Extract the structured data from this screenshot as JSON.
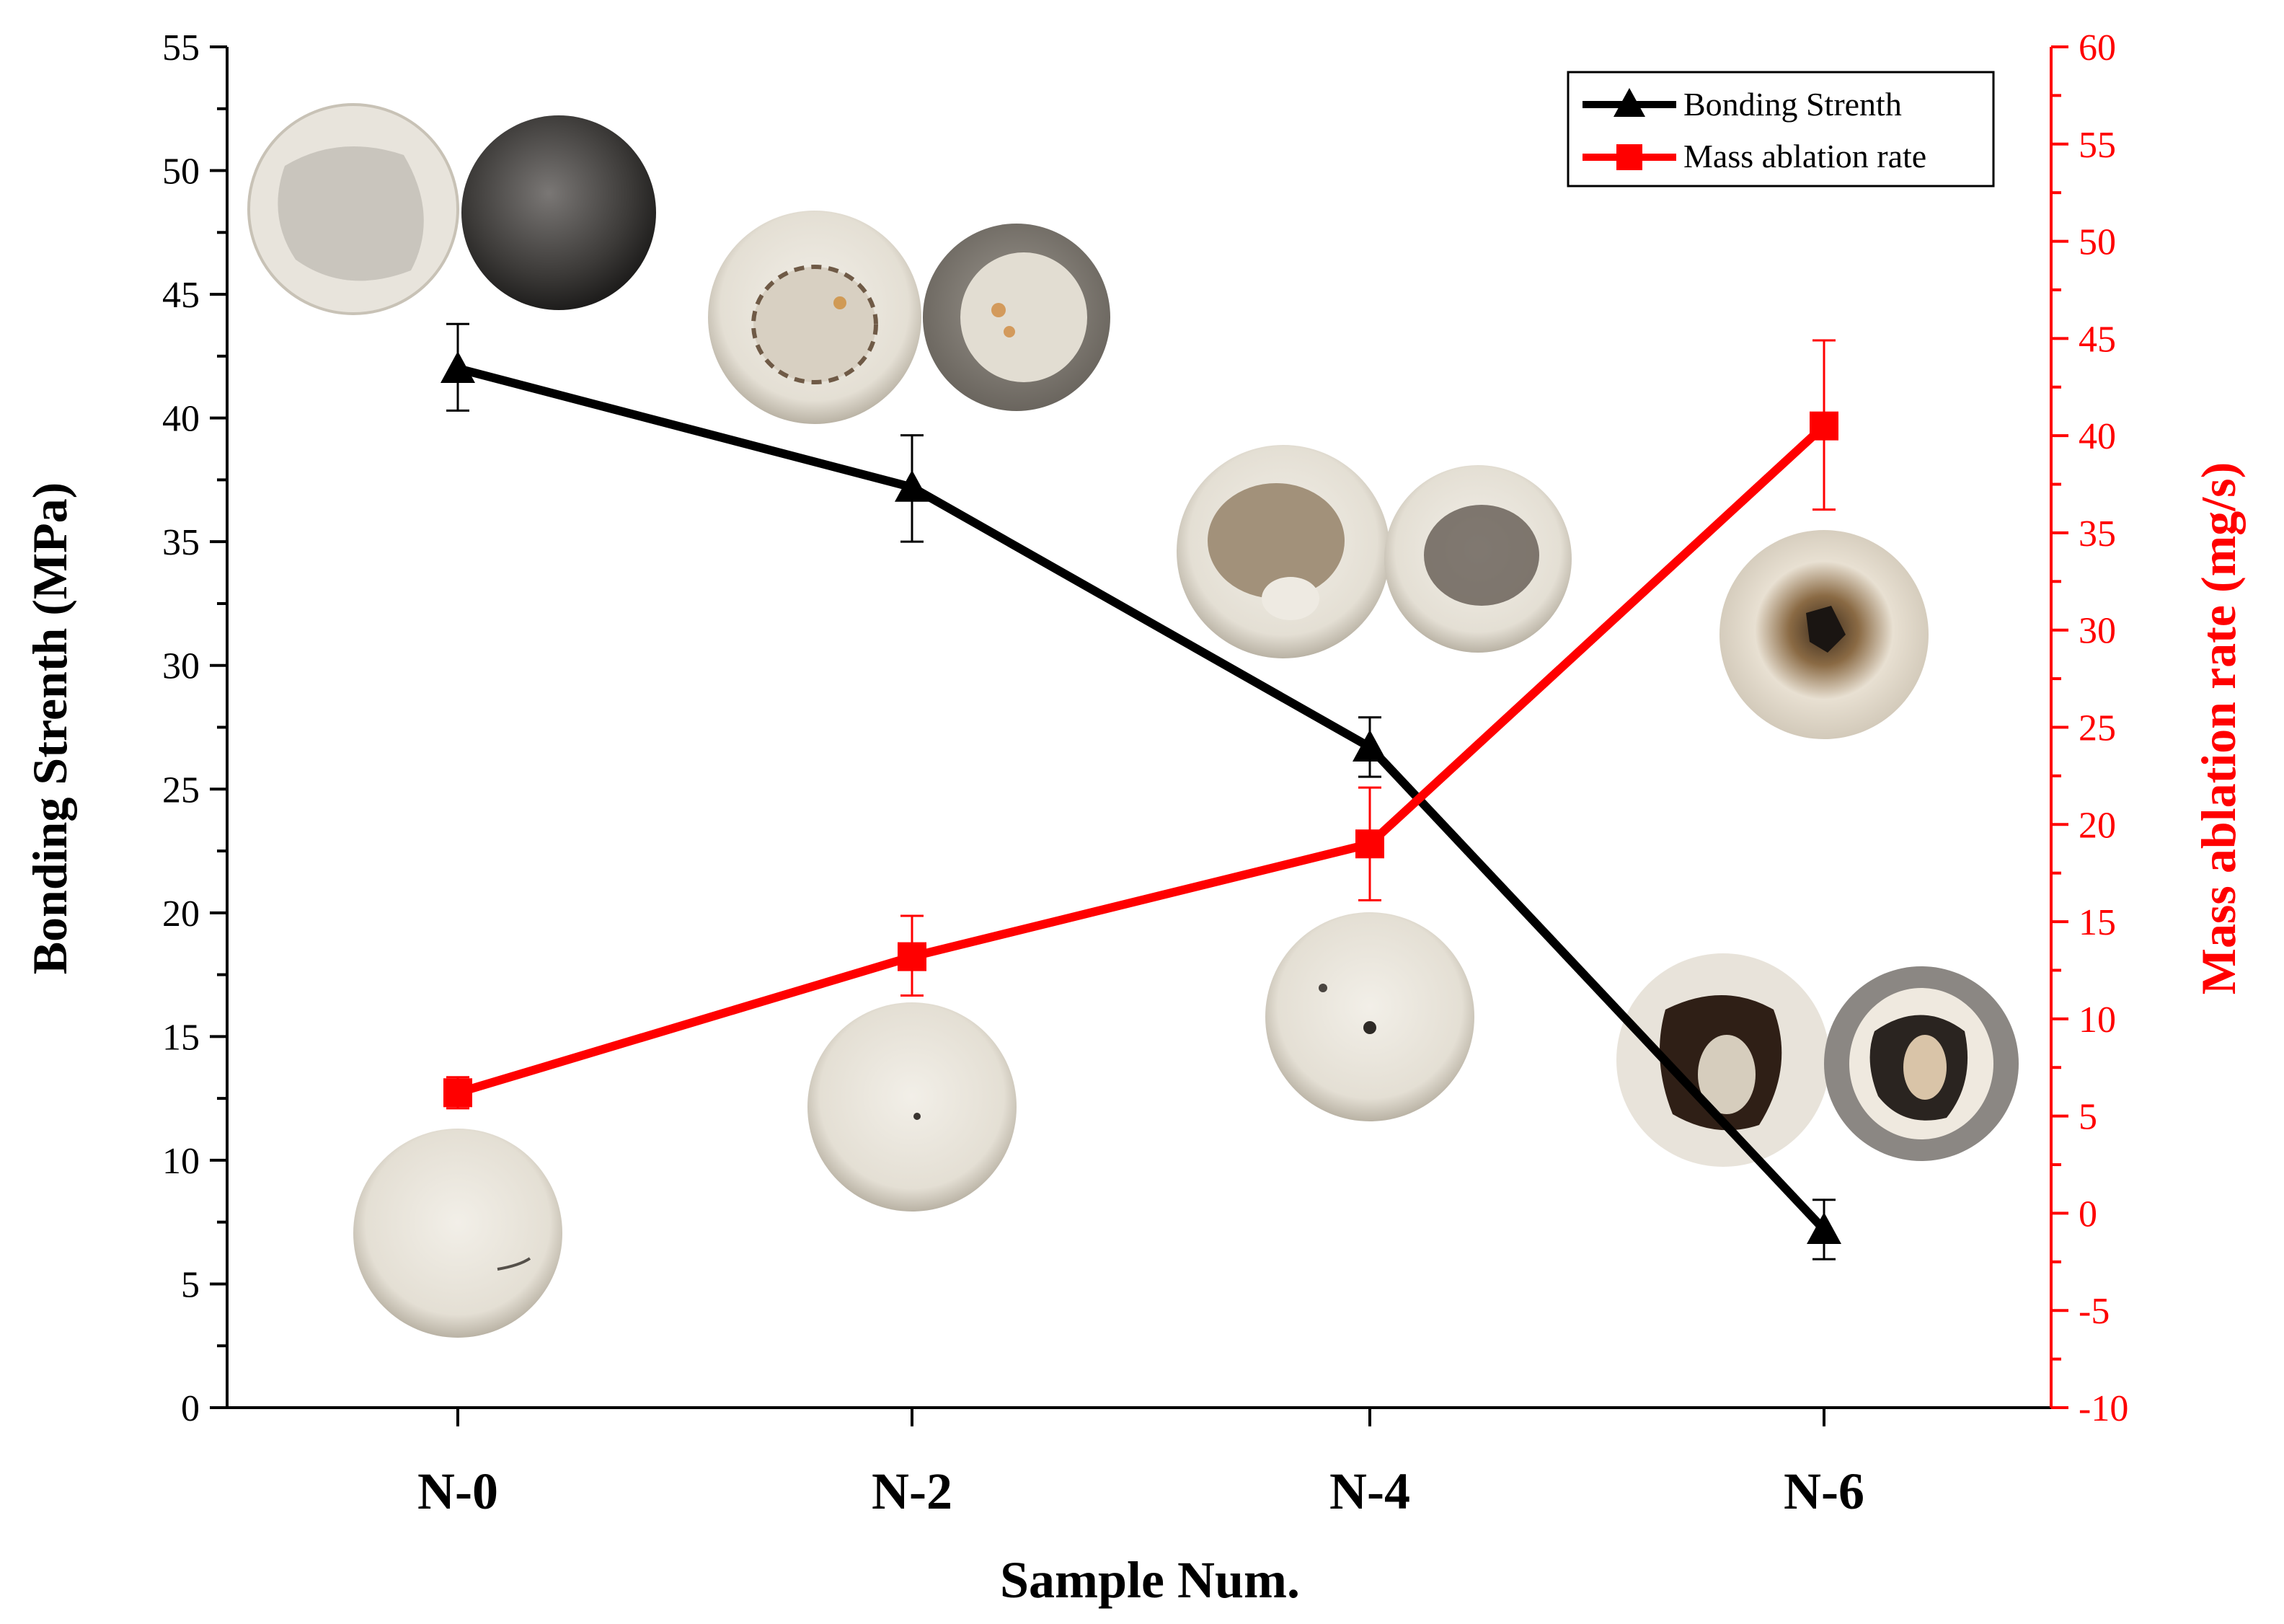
{
  "chart_data": {
    "type": "line",
    "categories": [
      "N-0",
      "N-2",
      "N-4",
      "N-6"
    ],
    "xlabel": "Sample Num.",
    "left_axis": {
      "label": "Bonding Strenth (MPa)",
      "range": [
        0,
        55
      ],
      "major_step": 5,
      "ticks": [
        "0",
        "5",
        "10",
        "15",
        "20",
        "25",
        "30",
        "35",
        "40",
        "45",
        "50",
        "55"
      ],
      "color": "#000000"
    },
    "right_axis": {
      "label": "Mass ablation rate (mg/s)",
      "range": [
        -10,
        60
      ],
      "major_step": 5,
      "ticks": [
        "-10",
        "-5",
        "0",
        "5",
        "10",
        "15",
        "20",
        "25",
        "30",
        "35",
        "40",
        "45",
        "50",
        "55",
        "60"
      ],
      "color": "#ff0000"
    },
    "series": [
      {
        "name": "Bonding Strenth",
        "axis": "left",
        "marker": "triangle",
        "color": "#000000",
        "values": [
          42.0,
          37.2,
          26.7,
          7.2
        ],
        "err_low": [
          1.7,
          2.2,
          1.2,
          1.2
        ],
        "err_high": [
          1.8,
          2.1,
          1.2,
          1.2
        ]
      },
      {
        "name": "Mass ablation rate",
        "axis": "right",
        "marker": "square",
        "color": "#ff0000",
        "values": [
          6.2,
          13.2,
          19.0,
          40.5
        ],
        "err_low": [
          0.8,
          2.0,
          2.9,
          4.3
        ],
        "err_high": [
          0.8,
          2.1,
          2.9,
          4.4
        ]
      }
    ],
    "legend": {
      "position": "top-right"
    },
    "sample_photos": [
      "N-0 sample photos (bonded surfaces and ablated surface)",
      "N-2 sample photos",
      "N-4 sample photos",
      "N-6 sample photos"
    ]
  }
}
